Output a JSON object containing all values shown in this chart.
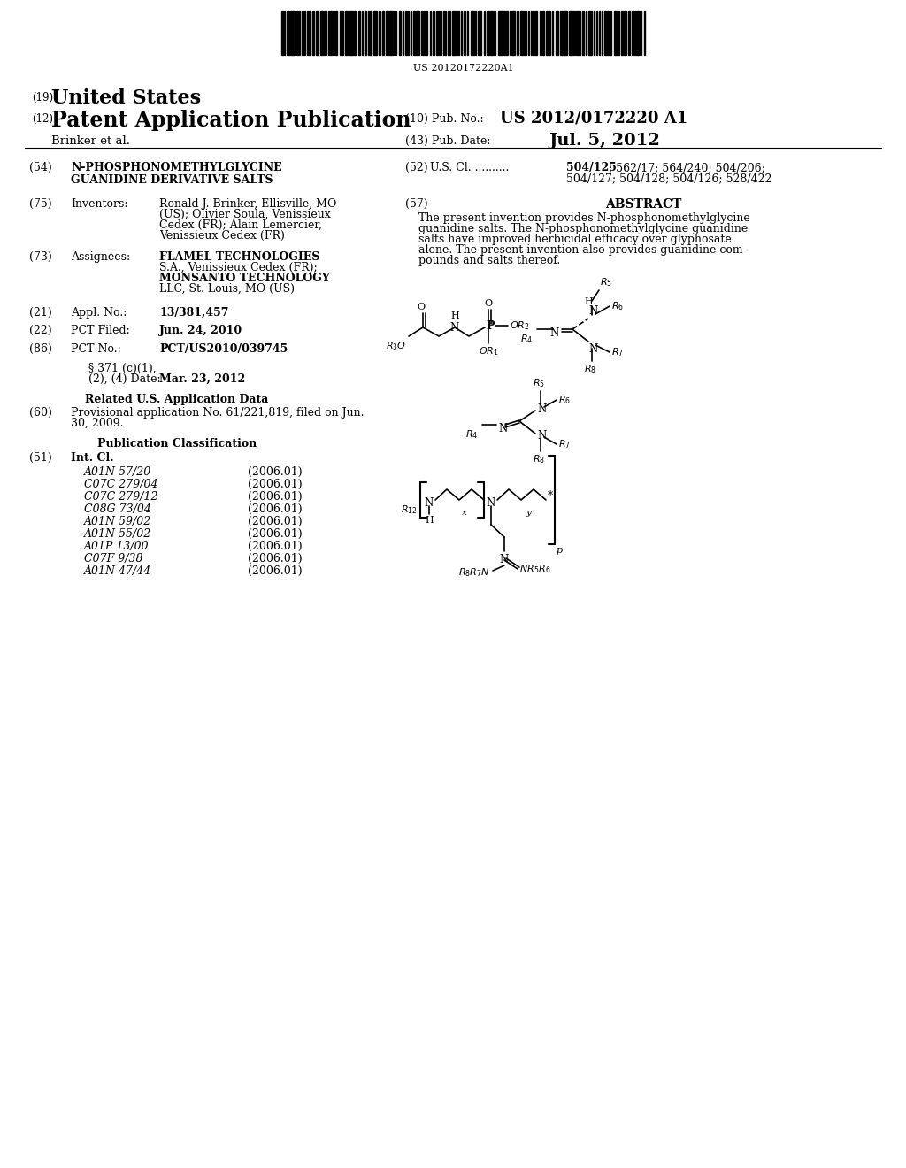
{
  "background_color": "#ffffff",
  "barcode_text": "US 20120172220A1",
  "header": {
    "country_num": "(19)",
    "country": "United States",
    "type_num": "(12)",
    "type": "Patent Application Publication",
    "pub_num_label": "(10) Pub. No.:",
    "pub_num": "US 2012/0172220 A1",
    "author": "Brinker et al.",
    "date_num_label": "(43) Pub. Date:",
    "date": "Jul. 5, 2012"
  },
  "fields": {
    "title_num": "(54)",
    "title_label": "N-PHOSPHONOMETHYLGLYCINE\nGUANIDINE DERIVATIVE SALTS",
    "inventors_num": "(75)",
    "inventors_label": "Inventors:",
    "inventors_text": "Ronald J. Brinker, Ellisville, MO\n(US); Olivier Soula, Venissieux\nCedex (FR); Alain Lemercier,\nVenissieux Cedex (FR)",
    "assignees_num": "(73)",
    "assignees_label": "Assignees:",
    "assignees_text": "FLAMEL TECHNOLOGIES\nS.A., Venissieux Cedex (FR);\nMONSANTO TECHNOLOGY\nLLC, St. Louis, MO (US)",
    "appl_num": "(21)",
    "appl_label": "Appl. No.:",
    "appl_val": "13/381,457",
    "pct_filed_num": "(22)",
    "pct_filed_label": "PCT Filed:",
    "pct_filed_val": "Jun. 24, 2010",
    "pct_no_num": "(86)",
    "pct_no_label": "PCT No.:",
    "pct_no_val": "PCT/US2010/039745",
    "section_371_line1": "§ 371 (c)(1),",
    "section_371_line2": "(2), (4) Date:",
    "section_371_val": "Mar. 23, 2012",
    "related_header": "Related U.S. Application Data",
    "provisional_num": "(60)",
    "provisional_text": "Provisional application No. 61/221,819, filed on Jun.\n30, 2009.",
    "pub_class_header": "Publication Classification",
    "int_cl_num": "(51)",
    "int_cl_label": "Int. Cl.",
    "classifications": [
      [
        "A01N 57/20",
        "(2006.01)"
      ],
      [
        "C07C 279/04",
        "(2006.01)"
      ],
      [
        "C07C 279/12",
        "(2006.01)"
      ],
      [
        "C08G 73/04",
        "(2006.01)"
      ],
      [
        "A01N 59/02",
        "(2006.01)"
      ],
      [
        "A01N 55/02",
        "(2006.01)"
      ],
      [
        "A01P 13/00",
        "(2006.01)"
      ],
      [
        "C07F 9/38",
        "(2006.01)"
      ],
      [
        "A01N 47/44",
        "(2006.01)"
      ]
    ],
    "us_cl_num": "(52)",
    "us_cl_label": "U.S. Cl. ..........",
    "us_cl_val_bold": "504/125",
    "us_cl_val_rest": "; 562/17; 564/240; 504/206;\n504/127; 504/128; 504/126; 528/422",
    "abstract_num": "(57)",
    "abstract_header": "ABSTRACT",
    "abstract_text": "The present invention provides N-phosphonomethylglycine\nguanidine salts. The N-phosphonomethylglycine guanidine\nsalts have improved herbicidal efficacy over glyphosate\nalone. The present invention also provides guanidine com-\npounds and salts thereof."
  }
}
